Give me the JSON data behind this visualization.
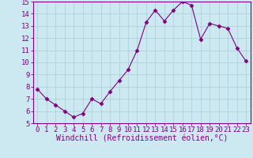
{
  "x": [
    0,
    1,
    2,
    3,
    4,
    5,
    6,
    7,
    8,
    9,
    10,
    11,
    12,
    13,
    14,
    15,
    16,
    17,
    18,
    19,
    20,
    21,
    22,
    23
  ],
  "y": [
    7.8,
    7.0,
    6.5,
    6.0,
    5.5,
    5.8,
    7.0,
    6.6,
    7.6,
    8.5,
    9.4,
    11.0,
    13.3,
    14.3,
    13.4,
    14.3,
    15.0,
    14.7,
    11.9,
    13.2,
    13.0,
    12.8,
    11.2,
    10.1
  ],
  "line_color": "#800080",
  "marker": "D",
  "marker_size": 2.5,
  "bg_color": "#cce8f0",
  "grid_color": "#aaccd8",
  "xlabel": "Windchill (Refroidissement éolien,°C)",
  "ylim": [
    5,
    15
  ],
  "xlim": [
    -0.5,
    23.5
  ],
  "yticks": [
    5,
    6,
    7,
    8,
    9,
    10,
    11,
    12,
    13,
    14,
    15
  ],
  "xticks": [
    0,
    1,
    2,
    3,
    4,
    5,
    6,
    7,
    8,
    9,
    10,
    11,
    12,
    13,
    14,
    15,
    16,
    17,
    18,
    19,
    20,
    21,
    22,
    23
  ],
  "label_color": "#800080",
  "tick_color": "#800080",
  "spine_color": "#800080",
  "tick_font_size": 6.5,
  "xlabel_font_size": 7
}
